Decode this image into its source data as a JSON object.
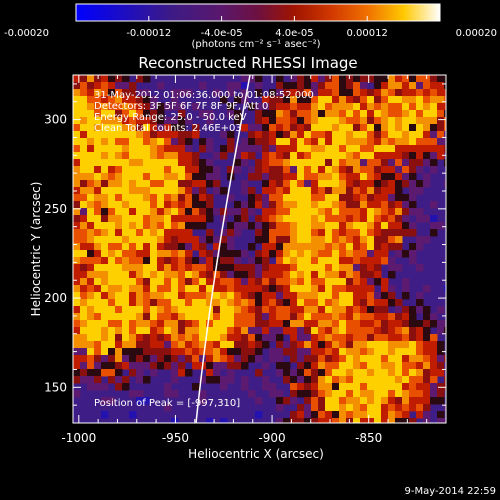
{
  "colorbar": {
    "tick_labels": [
      "-0.00020",
      "-0.00012",
      "-4.0e-05",
      "4.0e-05",
      "0.00012",
      "0.00020"
    ],
    "tick_values": [
      -0.0002,
      -0.00012,
      -4e-05,
      4e-05,
      0.00012,
      0.0002
    ],
    "range": [
      -0.0002,
      0.0002
    ],
    "units_label": "(photons cm⁻² s⁻¹ asec⁻²)",
    "colormap": [
      "#0000ff",
      "#2a0f9c",
      "#3a1a7a",
      "#5a186c",
      "#8a1020",
      "#b81800",
      "#e04a00",
      "#f6a000",
      "#ffe000",
      "#ffffff"
    ]
  },
  "image": {
    "title": "Reconstructed RHESSI Image",
    "info_lines": [
      "31-May-2012 01:06:36.000 to 01:08:52.000",
      "Detectors: 3F 5F 6F 7F 8F 9F, Att 0",
      "Energy Range: 25.0 - 50.0 keV",
      "Clean    Total counts: 2.46E+03"
    ],
    "peak_label": "Position of Peak = [-997,310]",
    "x_axis": {
      "label": "Heliocentric X (arcsec)",
      "tick_labels": [
        "-1000",
        "-950",
        "-900",
        "-850"
      ],
      "tick_values": [
        -1000,
        -950,
        -900,
        -850
      ],
      "range": [
        -1003,
        -810
      ]
    },
    "y_axis": {
      "label": "Heliocentric Y (arcsec)",
      "tick_labels": [
        "150",
        "200",
        "250",
        "300"
      ],
      "tick_values": [
        150,
        200,
        250,
        300
      ],
      "range": [
        130,
        325
      ]
    }
  },
  "timestamp": "9-May-2014 22:59"
}
